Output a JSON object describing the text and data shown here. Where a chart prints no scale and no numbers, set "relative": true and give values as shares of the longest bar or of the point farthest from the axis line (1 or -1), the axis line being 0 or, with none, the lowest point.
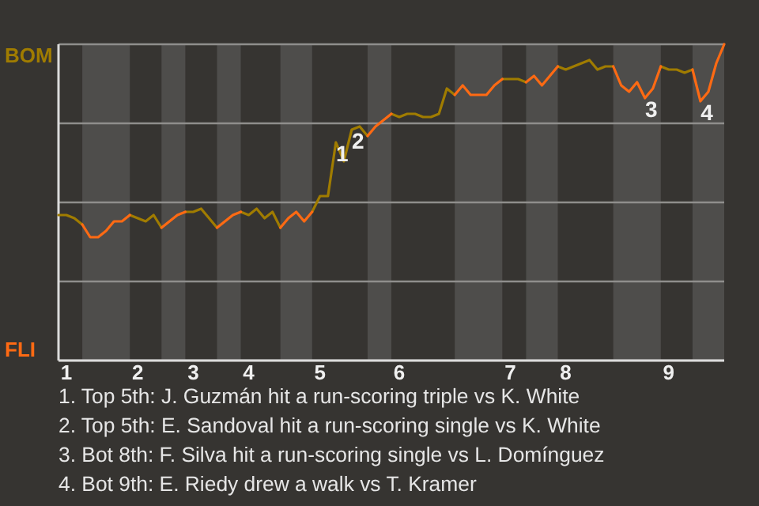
{
  "chart_data": {
    "type": "line",
    "relative": true,
    "categories": [
      null,
      "1",
      null,
      null,
      null,
      null,
      null,
      null,
      null,
      null,
      "2",
      null,
      null,
      null,
      null,
      null,
      null,
      "3",
      null,
      null,
      null,
      null,
      null,
      null,
      "4",
      null,
      null,
      null,
      null,
      null,
      null,
      null,
      null,
      "5",
      null,
      null,
      null,
      null,
      null,
      null,
      null,
      null,
      null,
      "6",
      null,
      null,
      null,
      null,
      null,
      null,
      null,
      null,
      null,
      null,
      null,
      null,
      null,
      "7",
      null,
      null,
      null,
      null,
      null,
      null,
      "8",
      null,
      null,
      null,
      null,
      null,
      null,
      null,
      null,
      null,
      null,
      null,
      null,
      "9",
      null,
      null,
      null,
      null,
      null,
      null,
      null
    ],
    "series": [
      {
        "color": "#a07c00",
        "values": [
          0.46,
          0.46,
          0.45,
          0.43,
          null,
          null,
          null,
          null,
          null,
          0.46,
          0.45,
          0.44,
          0.46,
          0.42,
          null,
          null,
          0.47,
          0.47,
          0.48,
          0.45,
          0.42,
          null,
          null,
          0.47,
          0.46,
          0.48,
          0.45,
          0.47,
          0.42,
          null,
          null,
          null,
          0.47,
          0.52,
          0.52,
          0.69,
          0.63,
          0.73,
          0.74,
          0.71,
          null,
          null,
          0.78,
          0.77,
          0.78,
          0.78,
          0.77,
          0.77,
          0.78,
          0.86,
          0.84,
          null,
          null,
          null,
          null,
          null,
          0.89,
          0.89,
          0.89,
          0.88,
          null,
          null,
          null,
          0.93,
          0.92,
          0.93,
          0.94,
          0.95,
          0.92,
          0.93,
          0.93,
          null,
          null,
          null,
          null,
          null,
          0.93,
          0.92,
          0.92,
          0.91,
          0.92,
          null,
          null,
          null,
          null
        ]
      },
      {
        "color": "#ff6a13",
        "values": [
          null,
          null,
          null,
          0.43,
          0.39,
          0.39,
          0.41,
          0.44,
          0.44,
          0.46,
          null,
          null,
          null,
          0.42,
          0.44,
          0.46,
          0.47,
          null,
          null,
          null,
          0.42,
          0.44,
          0.46,
          0.47,
          null,
          null,
          null,
          null,
          0.42,
          0.45,
          0.47,
          0.44,
          0.47,
          null,
          null,
          null,
          null,
          null,
          null,
          0.71,
          0.74,
          0.76,
          0.78,
          null,
          null,
          null,
          null,
          null,
          null,
          null,
          0.84,
          0.87,
          0.84,
          0.84,
          0.84,
          0.87,
          0.89,
          null,
          null,
          0.88,
          0.9,
          0.87,
          0.9,
          0.93,
          null,
          null,
          null,
          null,
          null,
          null,
          0.93,
          0.87,
          0.85,
          0.88,
          0.83,
          0.86,
          0.93,
          null,
          null,
          null,
          0.92,
          0.82,
          0.85,
          0.94,
          1
        ]
      }
    ],
    "grid": true,
    "annotations": [
      "BOM",
      "FLI",
      {
        "text": "1",
        "y": 0.69
      },
      {
        "text": "2",
        "y": 0.73
      },
      {
        "text": "3",
        "y": 0.83
      },
      {
        "text": "4",
        "y": 0.82
      },
      "1. Top 5th: J. Guzmán hit a run-scoring triple vs K. White",
      "2. Top 5th: E. Sandoval hit a run-scoring single vs K. White",
      "3. Bot 8th: F. Silva hit a run-scoring single vs L. Domínguez",
      "4. Bot 9th: E. Riedy drew a walk vs T. Kramer"
    ]
  }
}
